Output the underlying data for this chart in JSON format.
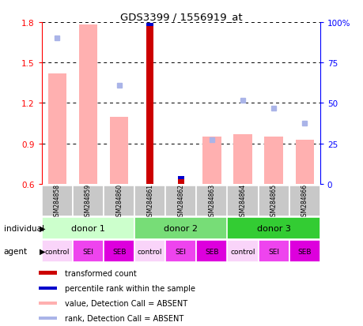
{
  "title": "GDS3399 / 1556919_at",
  "samples": [
    "GSM284858",
    "GSM284859",
    "GSM284860",
    "GSM284861",
    "GSM284862",
    "GSM284863",
    "GSM284864",
    "GSM284865",
    "GSM284866"
  ],
  "red_bars": [
    null,
    null,
    null,
    1.79,
    0.635,
    null,
    null,
    null,
    null
  ],
  "blue_bars_top": [
    null,
    null,
    null,
    1.795,
    0.66,
    null,
    null,
    null,
    null
  ],
  "pink_bars": [
    1.42,
    1.78,
    1.1,
    null,
    null,
    0.95,
    0.97,
    0.95,
    0.93
  ],
  "blue_squares_y": [
    1.68,
    null,
    1.33,
    null,
    null,
    0.93,
    1.22,
    1.16,
    1.05
  ],
  "ylim": [
    0.6,
    1.8
  ],
  "yticks_left": [
    0.6,
    0.9,
    1.2,
    1.5,
    1.8
  ],
  "yticks_right_vals": [
    0,
    25,
    50,
    75,
    100
  ],
  "donors": [
    {
      "label": "donor 1",
      "start": 0,
      "end": 3,
      "color": "#ccffcc"
    },
    {
      "label": "donor 2",
      "start": 3,
      "end": 6,
      "color": "#77dd77"
    },
    {
      "label": "donor 3",
      "start": 6,
      "end": 9,
      "color": "#33cc33"
    }
  ],
  "agents": [
    "control",
    "SEI",
    "SEB",
    "control",
    "SEI",
    "SEB",
    "control",
    "SEI",
    "SEB"
  ],
  "agent_colors": [
    "#f8c8f8",
    "#ee66ee",
    "#ee00ee",
    "#f8c8f8",
    "#ee66ee",
    "#ee00ee",
    "#f8c8f8",
    "#ee66ee",
    "#ee00ee"
  ],
  "individual_label": "individual",
  "agent_label": "agent",
  "legend_items": [
    {
      "label": "transformed count",
      "color": "#cc0000"
    },
    {
      "label": "percentile rank within the sample",
      "color": "#0000cc"
    },
    {
      "label": "value, Detection Call = ABSENT",
      "color": "#ffb0b0"
    },
    {
      "label": "rank, Detection Call = ABSENT",
      "color": "#aab4e8"
    }
  ],
  "pink_color": "#ffb0b0",
  "red_color": "#cc0000",
  "blue_bar_color": "#0000cc",
  "blue_sq_color": "#aab4e8",
  "gray_label_color": "#c8c8c8"
}
